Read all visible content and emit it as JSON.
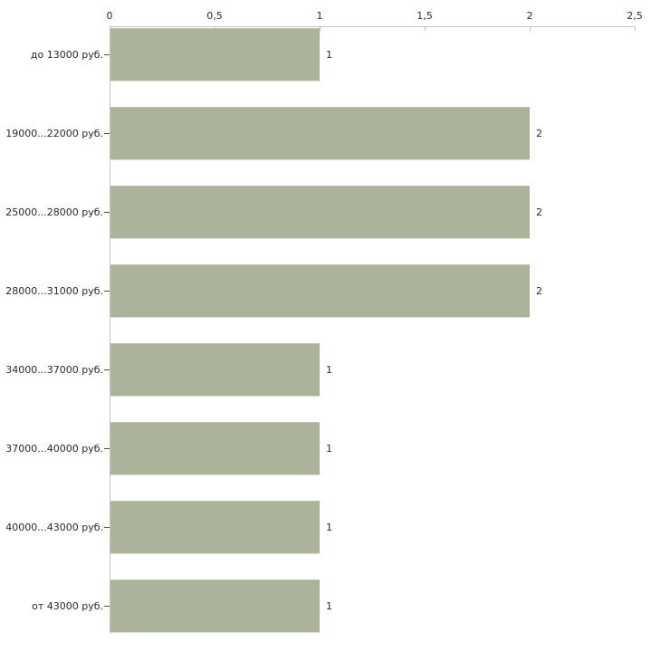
{
  "chart_data": {
    "type": "bar",
    "orientation": "horizontal",
    "title": "",
    "xlabel": "",
    "ylabel": "",
    "categories": [
      "до 13000 руб.",
      "19000...22000 руб.",
      "25000...28000 руб.",
      "28000...31000 руб.",
      "34000...37000 руб.",
      "37000...40000 руб.",
      "40000...43000 руб.",
      "от 43000 руб."
    ],
    "values": [
      1,
      2,
      2,
      2,
      1,
      1,
      1,
      1
    ],
    "bar_value_labels": [
      "1",
      "2",
      "2",
      "2",
      "1",
      "1",
      "1",
      "1"
    ],
    "x_axis": {
      "position": "top",
      "min": 0,
      "max": 2.5,
      "tick_values": [
        0,
        0.5,
        1,
        1.5,
        2,
        2.5
      ],
      "tick_labels": [
        "0",
        "0,5",
        "1",
        "1,5",
        "2",
        "2,5"
      ],
      "grid": "off"
    },
    "legend": "none",
    "colors": {
      "background": "#ffffff",
      "bar_fill": "#abb39a",
      "bar_edge_top": "#bcc3a9",
      "bar_edge_bottom": "#dde0d0",
      "axis_line": "#c6c6bd",
      "x_tick_mark": "#c9c6aa",
      "category_tick_mark": "#4d4d4d",
      "text": "#2b2b2b"
    }
  }
}
